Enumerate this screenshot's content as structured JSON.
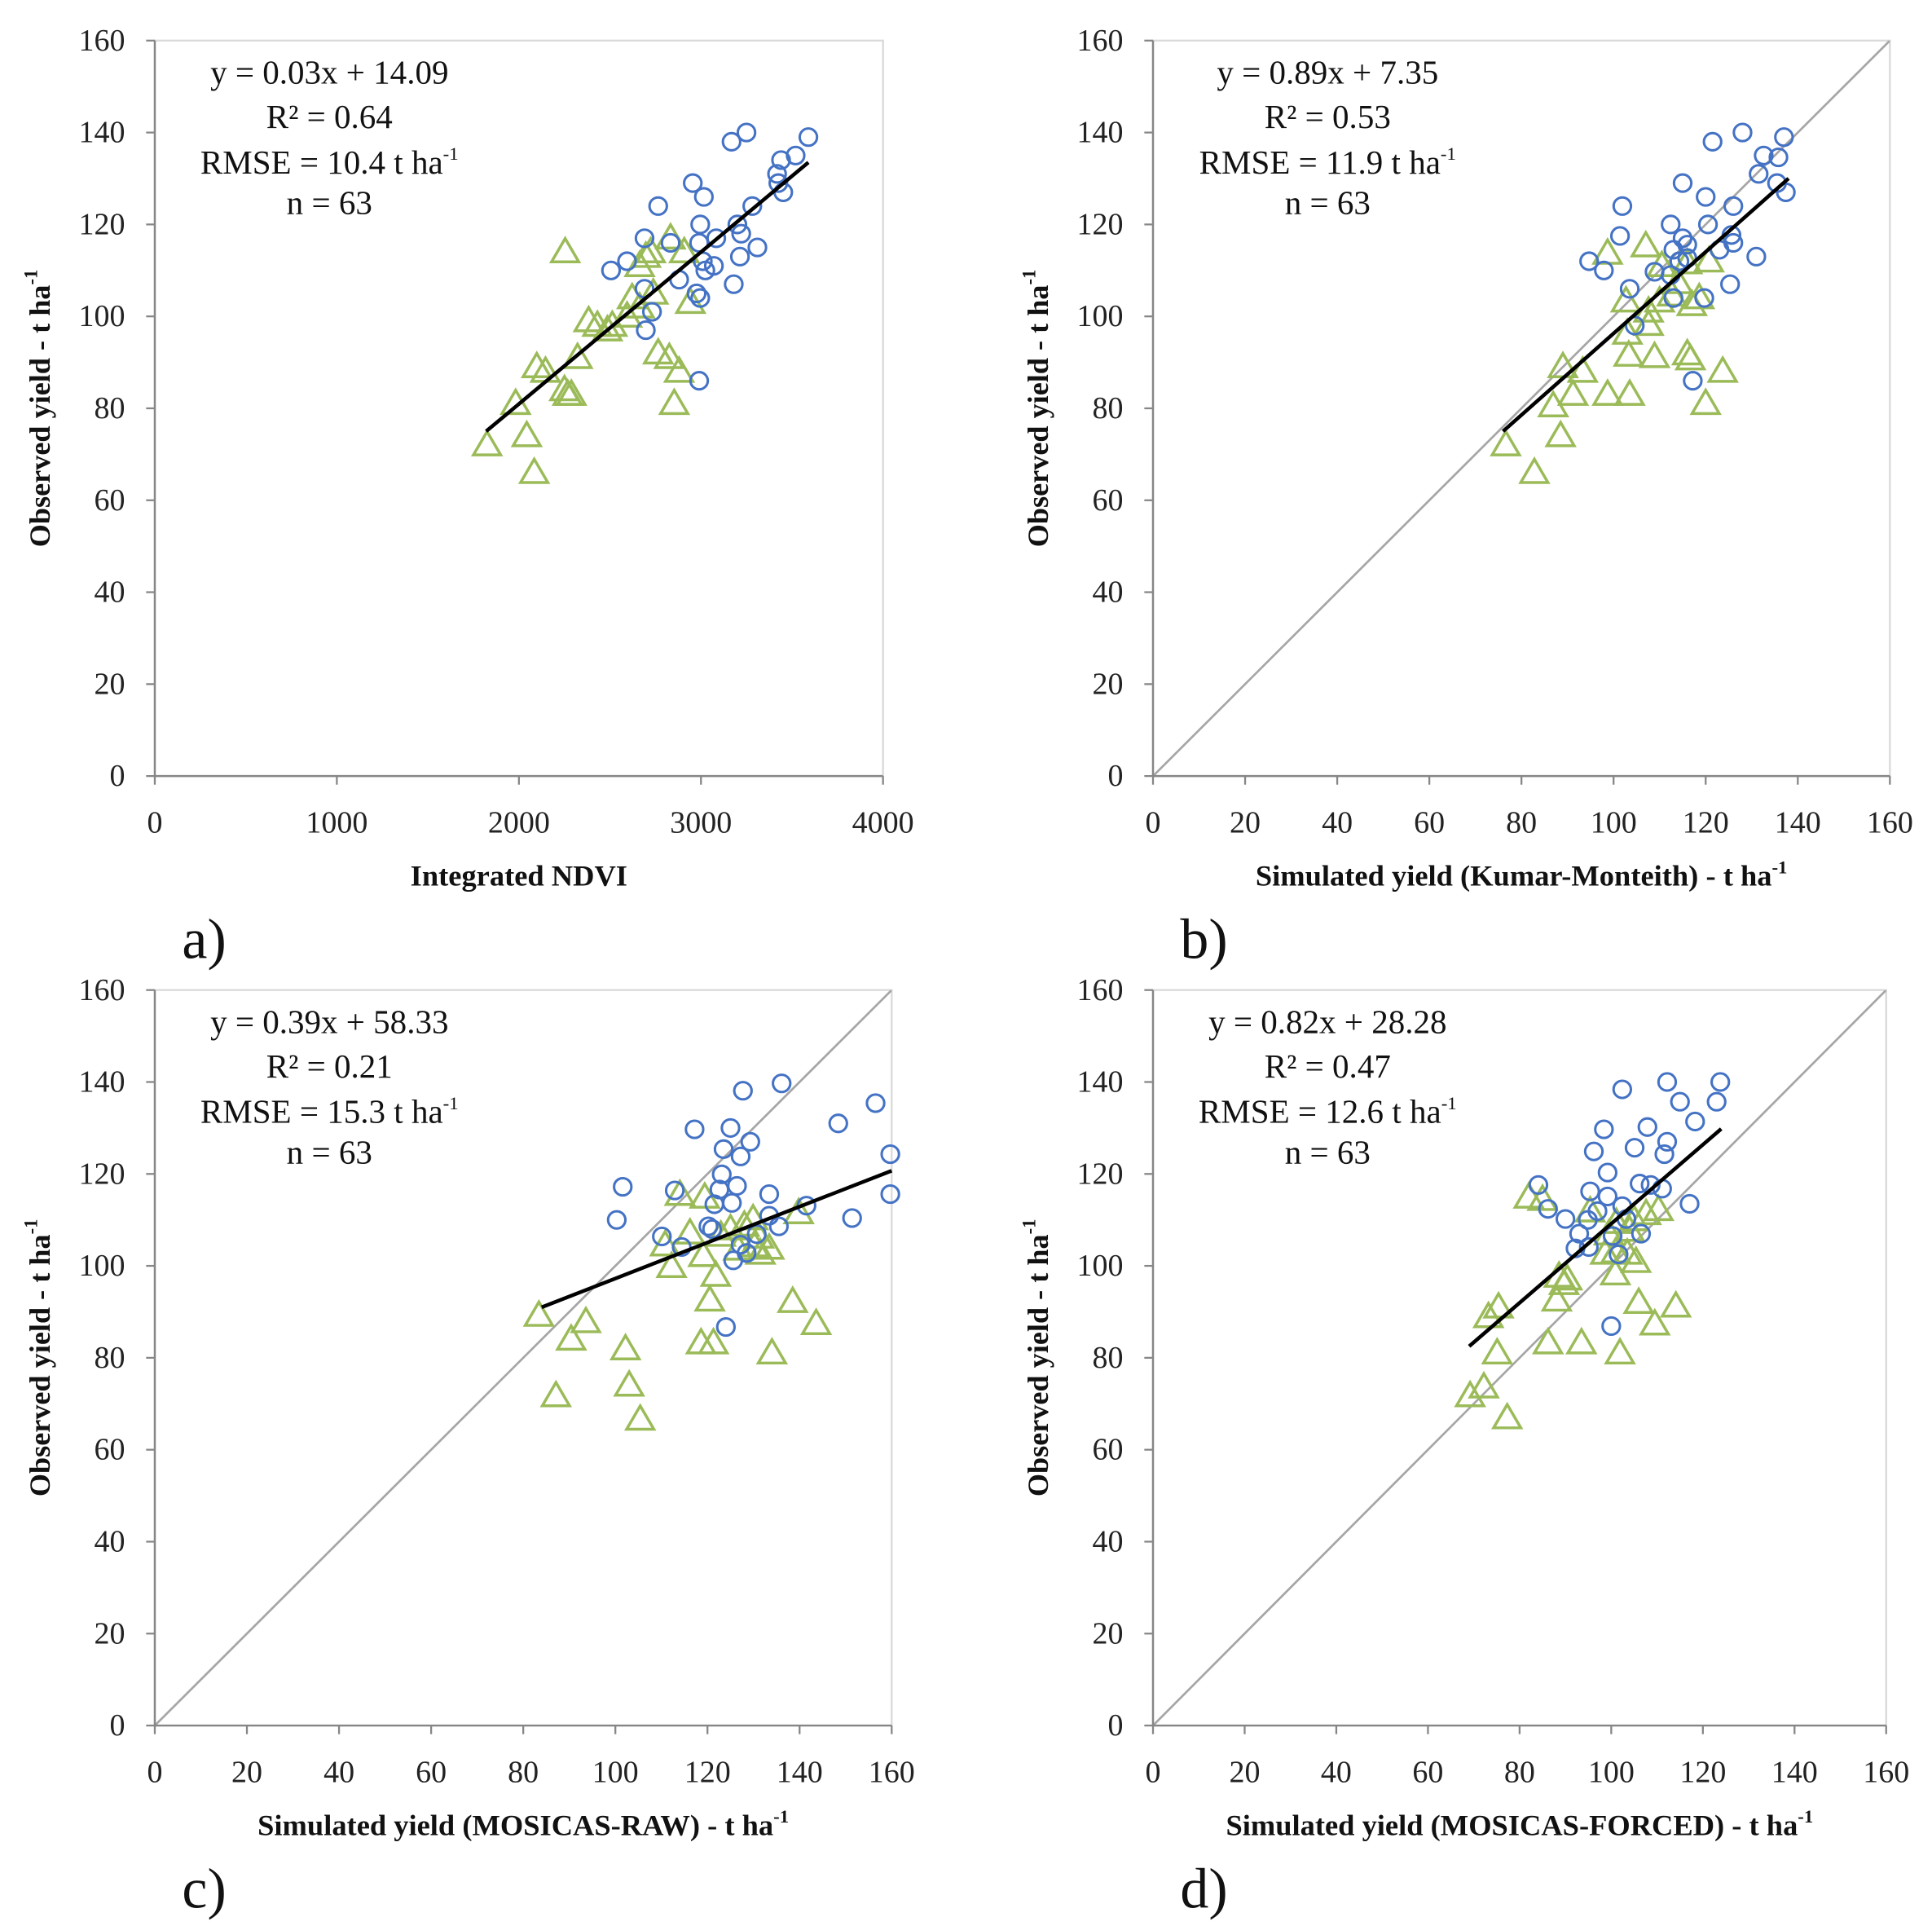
{
  "colors": {
    "circle": "#4472C4",
    "triangle": "#9BBB59",
    "trendline": "#000000",
    "reference": "#A6A6A6",
    "axis": "#868686",
    "frame": "#D9D9D9"
  },
  "chart_data": [
    {
      "type": "scatter",
      "panel": "a)",
      "xlabel": "Integrated NDVI",
      "xlabel_sup": "",
      "ylabel": "Observed yield - t ha",
      "ylabel_sup": "-1",
      "xlim": [
        0,
        4000
      ],
      "ylim": [
        0,
        160
      ],
      "xticks": [
        0,
        1000,
        2000,
        3000,
        4000
      ],
      "yticks": [
        0,
        20,
        40,
        60,
        80,
        100,
        120,
        140,
        160
      ],
      "annotation": {
        "equation": "y = 0.03x + 14.09",
        "r2": "R² = 0.64",
        "rmse": "RMSE = 10.4 t ha",
        "rmse_sup": "-1",
        "n": "n = 63"
      },
      "series": {
        "circle": [
          [
            3250,
            140
          ],
          [
            3590,
            139
          ],
          [
            3168,
            138
          ],
          [
            3520,
            135
          ],
          [
            3440,
            134
          ],
          [
            3418,
            131
          ],
          [
            3425,
            129
          ],
          [
            3452,
            127
          ],
          [
            2955,
            129
          ],
          [
            3016,
            126
          ],
          [
            2765,
            124
          ],
          [
            3282,
            124
          ],
          [
            2996,
            120
          ],
          [
            3200,
            120
          ],
          [
            3084,
            117
          ],
          [
            3221,
            118
          ],
          [
            2690,
            117
          ],
          [
            3310,
            115
          ],
          [
            2833,
            116
          ],
          [
            2990,
            116
          ],
          [
            3214,
            113
          ],
          [
            3010,
            112
          ],
          [
            3071,
            111
          ],
          [
            3024,
            110
          ],
          [
            2506,
            110
          ],
          [
            2594,
            112
          ],
          [
            2880,
            108
          ],
          [
            3180,
            107
          ],
          [
            2976,
            105
          ],
          [
            2996,
            104
          ],
          [
            2731,
            101
          ],
          [
            2697,
            97
          ],
          [
            2990,
            86
          ],
          [
            2690,
            106
          ]
        ],
        "triangle": [
          [
            2254,
            114
          ],
          [
            1825,
            72
          ],
          [
            2084,
            66
          ],
          [
            2043,
            74
          ],
          [
            1982,
            81
          ],
          [
            2098,
            89
          ],
          [
            2146,
            88
          ],
          [
            2268,
            83
          ],
          [
            2288,
            83
          ],
          [
            2250,
            84
          ],
          [
            2322,
            91
          ],
          [
            2383,
            99
          ],
          [
            2431,
            98
          ],
          [
            2513,
            98
          ],
          [
            2594,
            100
          ],
          [
            2663,
            102
          ],
          [
            2697,
            113
          ],
          [
            2724,
            114
          ],
          [
            2765,
            92
          ],
          [
            2826,
            91
          ],
          [
            2853,
            81
          ],
          [
            2880,
            88
          ],
          [
            2942,
            103
          ],
          [
            2908,
            114
          ],
          [
            2833,
            117
          ],
          [
            2738,
            105
          ],
          [
            2622,
            104
          ],
          [
            2486,
            97
          ],
          [
            2663,
            111
          ]
        ]
      },
      "trendline": {
        "x": [
          1820,
          3590
        ],
        "y": [
          75,
          133.5
        ]
      },
      "reference_line": null
    },
    {
      "type": "scatter",
      "panel": "b)",
      "xlabel": "Simulated yield (Kumar-Monteith) - t ha",
      "xlabel_sup": "-1",
      "ylabel": "Observed yield - t ha",
      "ylabel_sup": "-1",
      "xlim": [
        0,
        160
      ],
      "ylim": [
        0,
        160
      ],
      "xticks": [
        0,
        20,
        40,
        60,
        80,
        100,
        120,
        140,
        160
      ],
      "yticks": [
        0,
        20,
        40,
        60,
        80,
        100,
        120,
        140,
        160
      ],
      "annotation": {
        "equation": "y = 0.89x + 7.35",
        "r2": "R² = 0.53",
        "rmse": "RMSE = 11.9 t ha",
        "rmse_sup": "-1",
        "n": "n = 63"
      },
      "series": {
        "circle": [
          [
            128,
            140
          ],
          [
            137,
            139
          ],
          [
            121.5,
            138
          ],
          [
            132.6,
            135
          ],
          [
            135.8,
            134.6
          ],
          [
            131.5,
            131
          ],
          [
            135.5,
            129
          ],
          [
            137.4,
            127
          ],
          [
            115,
            129
          ],
          [
            120,
            126
          ],
          [
            101.9,
            124
          ],
          [
            126,
            124
          ],
          [
            112.4,
            120
          ],
          [
            120.5,
            120
          ],
          [
            101.4,
            117.5
          ],
          [
            125.6,
            117.7
          ],
          [
            126,
            116
          ],
          [
            115,
            117
          ],
          [
            116,
            115.6
          ],
          [
            113,
            114.5
          ],
          [
            123,
            114.5
          ],
          [
            131,
            113
          ],
          [
            116,
            112.7
          ],
          [
            114.3,
            112
          ],
          [
            94.7,
            112
          ],
          [
            97.9,
            110
          ],
          [
            108.9,
            109.7
          ],
          [
            112.4,
            109
          ],
          [
            103.5,
            106
          ],
          [
            125.3,
            107
          ],
          [
            113,
            104
          ],
          [
            119.7,
            104
          ],
          [
            104.6,
            98
          ],
          [
            117.2,
            86
          ]
        ],
        "triangle": [
          [
            76.6,
            72
          ],
          [
            82.8,
            66
          ],
          [
            88.5,
            74
          ],
          [
            86.9,
            80.5
          ],
          [
            89,
            89
          ],
          [
            93.3,
            88
          ],
          [
            91.2,
            83
          ],
          [
            98.7,
            83
          ],
          [
            103.5,
            83
          ],
          [
            103.3,
            91.5
          ],
          [
            108.9,
            91.2
          ],
          [
            116,
            91.8
          ],
          [
            116.7,
            90.7
          ],
          [
            123.7,
            88
          ],
          [
            120,
            81
          ],
          [
            98.7,
            113.7
          ],
          [
            107,
            115.3
          ],
          [
            103,
            96.3
          ],
          [
            107.6,
            98.2
          ],
          [
            107.6,
            101.1
          ],
          [
            110,
            103.3
          ],
          [
            112.7,
            104.6
          ],
          [
            117,
            102.5
          ],
          [
            118.6,
            104
          ],
          [
            120.7,
            112
          ],
          [
            116,
            111.6
          ],
          [
            114,
            107.3
          ],
          [
            110.5,
            111
          ],
          [
            102.7,
            103.3
          ]
        ]
      },
      "trendline": {
        "x": [
          76,
          138
        ],
        "y": [
          75,
          130
        ]
      },
      "reference_line": {
        "x": [
          0,
          160
        ],
        "y": [
          0,
          160
        ]
      }
    },
    {
      "type": "scatter",
      "panel": "c)",
      "xlabel": "Simulated yield (MOSICAS-RAW) - t ha",
      "xlabel_sup": "-1",
      "ylabel": "Observed yield - t ha",
      "ylabel_sup": "-1",
      "xlim": [
        0,
        160
      ],
      "ylim": [
        0,
        160
      ],
      "xticks": [
        0,
        20,
        40,
        60,
        80,
        100,
        120,
        140,
        160
      ],
      "yticks": [
        0,
        20,
        40,
        60,
        80,
        100,
        120,
        140,
        160
      ],
      "annotation": {
        "equation": "y = 0.39x + 58.33",
        "r2": "R² = 0.21",
        "rmse": "RMSE = 15.3 t ha",
        "rmse_sup": "-1",
        "n": "n = 63"
      },
      "series": {
        "circle": [
          [
            136.1,
            139.7
          ],
          [
            127.7,
            138.1
          ],
          [
            156.5,
            135.4
          ],
          [
            148.4,
            131
          ],
          [
            117.2,
            129.7
          ],
          [
            125,
            130
          ],
          [
            129.3,
            127
          ],
          [
            123.5,
            125.4
          ],
          [
            127.2,
            123.8
          ],
          [
            159.7,
            124.3
          ],
          [
            101.6,
            117.2
          ],
          [
            112.9,
            116.4
          ],
          [
            123.1,
            119.9
          ],
          [
            122.6,
            116.6
          ],
          [
            126.4,
            117.4
          ],
          [
            133.4,
            115.6
          ],
          [
            159.7,
            115.6
          ],
          [
            100.3,
            110
          ],
          [
            121.5,
            113.4
          ],
          [
            125.3,
            113.7
          ],
          [
            141.5,
            113.1
          ],
          [
            151.4,
            110.4
          ],
          [
            133.4,
            110.9
          ],
          [
            110.1,
            106.4
          ],
          [
            121,
            108
          ],
          [
            130.7,
            106.9
          ],
          [
            114.4,
            104.1
          ],
          [
            128.5,
            102.8
          ],
          [
            125.6,
            101.2
          ],
          [
            124,
            86.7
          ],
          [
            120.2,
            108.6
          ],
          [
            127.2,
            104.6
          ],
          [
            135.5,
            108.6
          ]
        ],
        "triangle": [
          [
            83.4,
            89.2
          ],
          [
            90.4,
            84
          ],
          [
            93.6,
            87.8
          ],
          [
            87.1,
            71.7
          ],
          [
            102.2,
            81.9
          ],
          [
            103,
            74
          ],
          [
            105.4,
            66.6
          ],
          [
            118.6,
            83.2
          ],
          [
            121.3,
            83.2
          ],
          [
            120.5,
            92.5
          ],
          [
            138.5,
            92.2
          ],
          [
            143.6,
            87.4
          ],
          [
            134,
            81
          ],
          [
            112.2,
            99.8
          ],
          [
            121.8,
            97.9
          ],
          [
            119.1,
            102.2
          ],
          [
            126.7,
            103.6
          ],
          [
            130.2,
            104.3
          ],
          [
            133.4,
            103.8
          ],
          [
            131.5,
            102.7
          ],
          [
            139.8,
            111.5
          ],
          [
            129.9,
            110.2
          ],
          [
            114,
            115.5
          ],
          [
            119.4,
            114.9
          ],
          [
            125,
            108
          ],
          [
            128,
            108.8
          ],
          [
            131.2,
            106.2
          ],
          [
            116.2,
            107.1
          ],
          [
            122.9,
            106.6
          ],
          [
            110.8,
            104.5
          ]
        ]
      },
      "trendline": {
        "x": [
          84,
          160
        ],
        "y": [
          91,
          120.7
        ]
      },
      "reference_line": {
        "x": [
          0,
          160
        ],
        "y": [
          0,
          160
        ]
      }
    },
    {
      "type": "scatter",
      "panel": "d)",
      "xlabel": "Simulated yield (MOSICAS-FORCED) - t ha",
      "xlabel_sup": "-1",
      "ylabel": "Observed yield - t ha",
      "ylabel_sup": "-1",
      "xlim": [
        0,
        160
      ],
      "ylim": [
        0,
        160
      ],
      "xticks": [
        0,
        20,
        40,
        60,
        80,
        100,
        120,
        140,
        160
      ],
      "yticks": [
        0,
        20,
        40,
        60,
        80,
        100,
        120,
        140,
        160
      ],
      "annotation": {
        "equation": "y = 0.82x + 28.28",
        "r2": "R² = 0.47",
        "rmse": "RMSE = 12.6 t ha",
        "rmse_sup": "-1",
        "n": "n = 63"
      },
      "series": {
        "circle": [
          [
            123.8,
            140
          ],
          [
            112.2,
            140
          ],
          [
            102.4,
            138.4
          ],
          [
            123,
            135.7
          ],
          [
            115,
            135.7
          ],
          [
            118.3,
            131.4
          ],
          [
            98.4,
            129.7
          ],
          [
            107.9,
            130.2
          ],
          [
            112.2,
            127
          ],
          [
            105.1,
            125.7
          ],
          [
            96.2,
            124.9
          ],
          [
            111.6,
            124.3
          ],
          [
            84.1,
            117.6
          ],
          [
            99.2,
            120.3
          ],
          [
            106.2,
            117.9
          ],
          [
            108.6,
            117.6
          ],
          [
            111.1,
            116.8
          ],
          [
            95.4,
            116.2
          ],
          [
            99.2,
            115.1
          ],
          [
            117.1,
            113.5
          ],
          [
            86.2,
            112.4
          ],
          [
            90,
            110.2
          ],
          [
            103.3,
            110.2
          ],
          [
            94.9,
            110
          ],
          [
            93,
            107
          ],
          [
            100.3,
            106.5
          ],
          [
            95.1,
            104.1
          ],
          [
            106.5,
            107
          ],
          [
            101.6,
            102.5
          ],
          [
            92.2,
            103.8
          ],
          [
            100,
            86.9
          ],
          [
            97,
            111.9
          ],
          [
            102.4,
            113
          ]
        ],
        "triangle": [
          [
            69.2,
            71.7
          ],
          [
            72.2,
            73.6
          ],
          [
            75.1,
            81
          ],
          [
            77.3,
            66.9
          ],
          [
            73.2,
            88.9
          ],
          [
            75.4,
            91
          ],
          [
            86.2,
            83.2
          ],
          [
            93.5,
            83.2
          ],
          [
            88.1,
            92.5
          ],
          [
            101.9,
            81
          ],
          [
            106,
            92
          ],
          [
            114.1,
            91.2
          ],
          [
            109.5,
            87.3
          ],
          [
            82,
            114.9
          ],
          [
            85,
            114.4
          ],
          [
            88.6,
            97.7
          ],
          [
            90.4,
            97.1
          ],
          [
            100.9,
            98.2
          ],
          [
            105.4,
            100.9
          ],
          [
            103.5,
            102.7
          ],
          [
            98.7,
            102.7
          ],
          [
            105,
            110
          ],
          [
            107.6,
            111.3
          ],
          [
            101.1,
            109.4
          ],
          [
            110.3,
            112.2
          ],
          [
            95.4,
            111.9
          ],
          [
            99.5,
            106.9
          ],
          [
            89.7,
            96.1
          ],
          [
            104,
            107.7
          ],
          [
            101,
            103
          ]
        ]
      },
      "trendline": {
        "x": [
          69,
          124
        ],
        "y": [
          82.5,
          129.8
        ]
      },
      "reference_line": {
        "x": [
          0,
          160
        ],
        "y": [
          0,
          160
        ]
      }
    }
  ]
}
